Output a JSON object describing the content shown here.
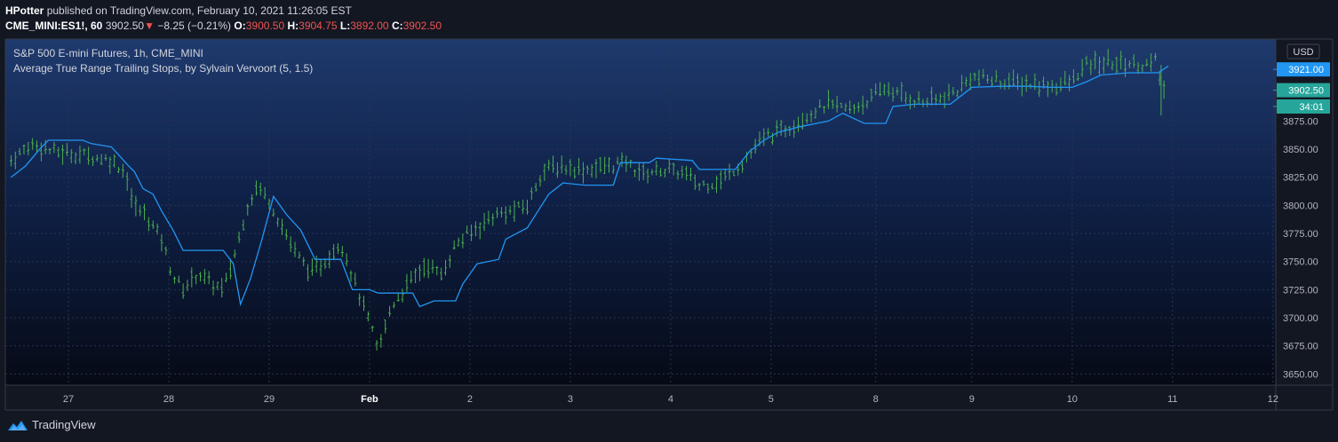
{
  "header": {
    "author": "HPotter",
    "published_text": "published on TradingView.com, February 10, 2021 11:26:05 EST"
  },
  "quote": {
    "symbol": "CME_MINI:ES1!, 60",
    "last": "3902.50",
    "change_arrow": "▼",
    "change": "−8.25 (−0.21%)",
    "o_label": "O:",
    "o_value": "3900.50",
    "h_label": "H:",
    "h_value": "3904.75",
    "l_label": "L:",
    "l_value": "3892.00",
    "c_label": "C:",
    "c_value": "3902.50"
  },
  "legend": {
    "line1": "S&P 500 E-mini Futures, 1h, CME_MINI",
    "line2": "Average True Range Trailing Stops, by Sylvain Vervoort (5, 1.5)"
  },
  "currency": "USD",
  "price_tags": [
    {
      "label": "3921.00",
      "value": 3921,
      "color": "#2196f3"
    },
    {
      "label": "3902.50",
      "value": 3902.5,
      "color": "#26a69a"
    },
    {
      "label": "34:01",
      "value": 3888,
      "color": "#26a69a"
    }
  ],
  "footer": {
    "brand": "TradingView"
  },
  "colors": {
    "bars": "#4caf50",
    "stop_line": "#2196f3",
    "grid": "#2a3350",
    "axis_text": "#b2b5be"
  },
  "chart_data": {
    "type": "line",
    "ylim": [
      3640,
      3948
    ],
    "y_ticks": [
      3650,
      3675,
      3700,
      3725,
      3750,
      3775,
      3800,
      3825,
      3850,
      3875,
      3900
    ],
    "y_tick_labels": [
      "3650.00",
      "3675.00",
      "3700.00",
      "3725.00",
      "3750.00",
      "3775.00",
      "3800.00",
      "3825.00",
      "3850.00",
      "3875.00",
      "3900.00"
    ],
    "x_ticks": [
      {
        "label": "27",
        "t": 4
      },
      {
        "label": "28",
        "t": 11
      },
      {
        "label": "29",
        "t": 18
      },
      {
        "label": "Feb",
        "t": 25,
        "bold": true
      },
      {
        "label": "2",
        "t": 32
      },
      {
        "label": "3",
        "t": 39
      },
      {
        "label": "4",
        "t": 46
      },
      {
        "label": "5",
        "t": 53
      },
      {
        "label": "8",
        "t": 60.3
      },
      {
        "label": "9",
        "t": 67
      },
      {
        "label": "10",
        "t": 74
      },
      {
        "label": "11",
        "t": 81
      },
      {
        "label": "12",
        "t": 88
      }
    ],
    "xlim": [
      -0.4,
      88.2
    ],
    "price_anchors": [
      [
        0,
        3840
      ],
      [
        1.5,
        3855
      ],
      [
        3,
        3848
      ],
      [
        5,
        3845
      ],
      [
        7,
        3840
      ],
      [
        8,
        3830
      ],
      [
        8.5,
        3800
      ],
      [
        9.5,
        3790
      ],
      [
        10.5,
        3770
      ],
      [
        11.2,
        3740
      ],
      [
        12,
        3725
      ],
      [
        13,
        3740
      ],
      [
        14,
        3730
      ],
      [
        14.8,
        3725
      ],
      [
        15.5,
        3752
      ],
      [
        16.5,
        3800
      ],
      [
        17.2,
        3818
      ],
      [
        18,
        3805
      ],
      [
        19,
        3778
      ],
      [
        20,
        3755
      ],
      [
        21,
        3740
      ],
      [
        22,
        3752
      ],
      [
        23,
        3768
      ],
      [
        24,
        3730
      ],
      [
        25,
        3695
      ],
      [
        25.6,
        3670
      ],
      [
        26.5,
        3710
      ],
      [
        28,
        3735
      ],
      [
        29,
        3748
      ],
      [
        30,
        3738
      ],
      [
        31,
        3765
      ],
      [
        32,
        3775
      ],
      [
        33.5,
        3790
      ],
      [
        35,
        3795
      ],
      [
        36,
        3800
      ],
      [
        37,
        3830
      ],
      [
        38,
        3835
      ],
      [
        40,
        3832
      ],
      [
        41.5,
        3835
      ],
      [
        43,
        3838
      ],
      [
        44,
        3828
      ],
      [
        45.5,
        3832
      ],
      [
        47,
        3828
      ],
      [
        48,
        3818
      ],
      [
        49.5,
        3822
      ],
      [
        51,
        3838
      ],
      [
        52.5,
        3860
      ],
      [
        54,
        3868
      ],
      [
        55.5,
        3880
      ],
      [
        57,
        3890
      ],
      [
        58.5,
        3885
      ],
      [
        60,
        3895
      ],
      [
        61,
        3905
      ],
      [
        62,
        3898
      ],
      [
        63.5,
        3892
      ],
      [
        65,
        3895
      ],
      [
        66,
        3902
      ],
      [
        67,
        3915
      ],
      [
        68,
        3912
      ],
      [
        69.5,
        3910
      ],
      [
        71,
        3908
      ],
      [
        72.5,
        3906
      ],
      [
        74,
        3910
      ],
      [
        75,
        3925
      ],
      [
        76.5,
        3927
      ],
      [
        78,
        3926
      ],
      [
        79.5,
        3925
      ],
      [
        80,
        3930
      ],
      [
        80.2,
        3900
      ],
      [
        80.4,
        3902
      ]
    ],
    "stop_line": [
      [
        0,
        3825
      ],
      [
        1,
        3835
      ],
      [
        2,
        3850
      ],
      [
        2.6,
        3858
      ],
      [
        5,
        3858
      ],
      [
        5.6,
        3855
      ],
      [
        7,
        3852
      ],
      [
        7.5,
        3845
      ],
      [
        8.2,
        3835
      ],
      [
        8.6,
        3830
      ],
      [
        9.2,
        3815
      ],
      [
        9.9,
        3810
      ],
      [
        10.5,
        3795
      ],
      [
        11.3,
        3778
      ],
      [
        12,
        3760
      ],
      [
        14.8,
        3760
      ],
      [
        15.5,
        3748
      ],
      [
        16,
        3712
      ],
      [
        16.7,
        3735
      ],
      [
        17.5,
        3770
      ],
      [
        18.3,
        3808
      ],
      [
        19.2,
        3792
      ],
      [
        20.2,
        3778
      ],
      [
        21.2,
        3752
      ],
      [
        23,
        3752
      ],
      [
        23.8,
        3725
      ],
      [
        25,
        3725
      ],
      [
        25.6,
        3722
      ],
      [
        28,
        3722
      ],
      [
        28.5,
        3710
      ],
      [
        29.5,
        3715
      ],
      [
        31,
        3715
      ],
      [
        31.5,
        3730
      ],
      [
        32.5,
        3748
      ],
      [
        34,
        3752
      ],
      [
        34.5,
        3770
      ],
      [
        36,
        3780
      ],
      [
        37.5,
        3810
      ],
      [
        38.5,
        3820
      ],
      [
        40,
        3818
      ],
      [
        42,
        3818
      ],
      [
        42.5,
        3838
      ],
      [
        44.5,
        3838
      ],
      [
        45,
        3842
      ],
      [
        47.5,
        3840
      ],
      [
        48,
        3832
      ],
      [
        50.5,
        3832
      ],
      [
        51.5,
        3848
      ],
      [
        52.5,
        3858
      ],
      [
        53.5,
        3865
      ],
      [
        55,
        3870
      ],
      [
        57,
        3875
      ],
      [
        58,
        3882
      ],
      [
        59.5,
        3873
      ],
      [
        61,
        3873
      ],
      [
        61.5,
        3888
      ],
      [
        63,
        3890
      ],
      [
        65.5,
        3890
      ],
      [
        66.5,
        3900
      ],
      [
        67,
        3905
      ],
      [
        69,
        3906
      ],
      [
        71,
        3906
      ],
      [
        72.5,
        3905
      ],
      [
        74,
        3905
      ],
      [
        75,
        3910
      ],
      [
        76,
        3916
      ],
      [
        78,
        3918
      ],
      [
        80,
        3918
      ],
      [
        80.7,
        3924
      ]
    ]
  }
}
